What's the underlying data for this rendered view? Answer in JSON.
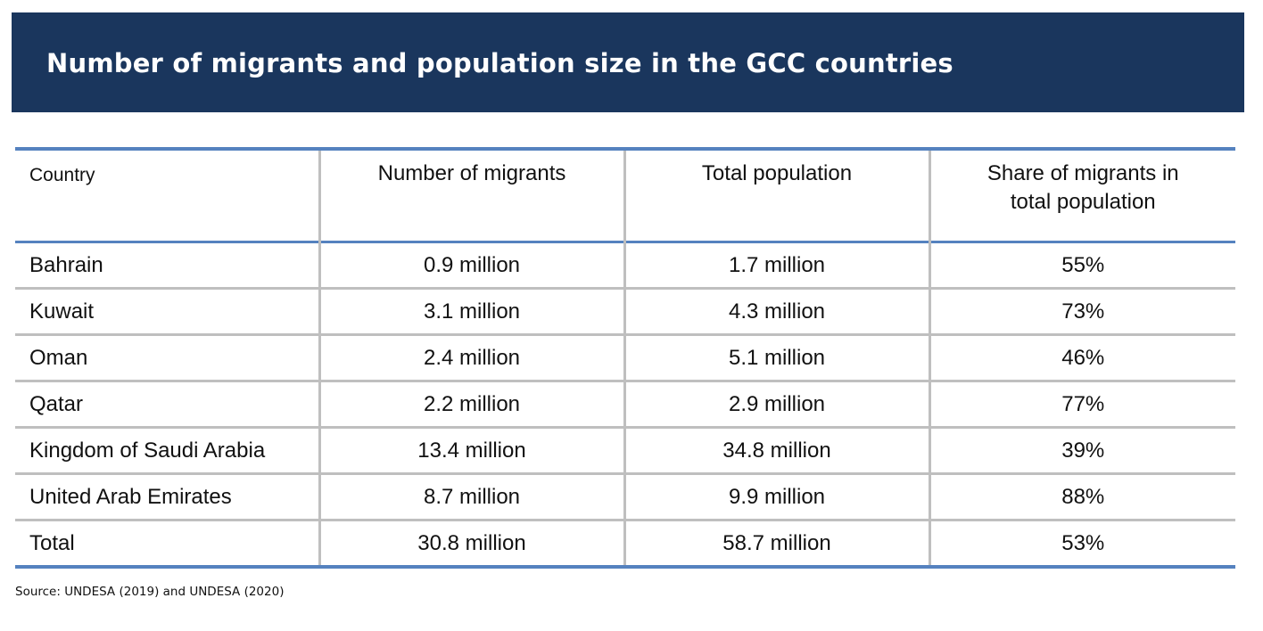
{
  "title": "Number of migrants and population size in the GCC countries",
  "table": {
    "headers": [
      "Country",
      "Number of migrants",
      "Total population",
      "Share of migrants in total population"
    ],
    "rows": [
      [
        "Bahrain",
        "0.9 million",
        "1.7 million",
        "55%"
      ],
      [
        "Kuwait",
        "3.1 million",
        "4.3 million",
        "73%"
      ],
      [
        "Oman",
        "2.4 million",
        "5.1 million",
        "46%"
      ],
      [
        "Qatar",
        "2.2 million",
        "2.9 million",
        "77%"
      ],
      [
        "Kingdom of Saudi Arabia",
        "13.4 million",
        "34.8 million",
        "39%"
      ],
      [
        "United Arab Emirates",
        "8.7 million",
        "9.9 million",
        "88%"
      ],
      [
        "Total",
        "30.8 million",
        "58.7 million",
        "53%"
      ]
    ]
  },
  "source": "Source: UNDESA (2019) and UNDESA (2020)",
  "colors": {
    "banner": "#1a365d",
    "rule": "#5582bf",
    "grid": "#bfbfbf"
  }
}
